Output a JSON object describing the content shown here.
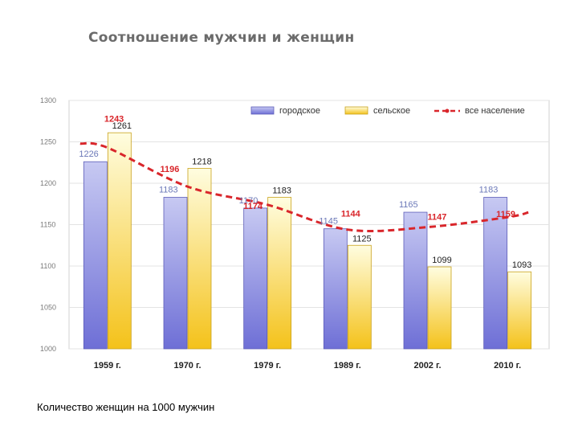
{
  "title": "Соотношение мужчин и женщин",
  "caption": "Количество женщин на 1000 мужчин",
  "colors": {
    "urban_top": "#c7c9f2",
    "urban_bottom": "#6e6fd6",
    "rural_top": "#fffde0",
    "rural_bottom": "#f4c21a",
    "total_line": "#d9262b",
    "urban_label": "#6c79b8",
    "rural_label": "#222222"
  },
  "chart_data": {
    "type": "bar",
    "title": "Соотношение мужчин и женщин",
    "xlabel": "",
    "ylabel": "",
    "ylim": [
      1000,
      1300
    ],
    "yticks": [
      1000,
      1050,
      1100,
      1150,
      1200,
      1250,
      1300
    ],
    "grid": true,
    "legend_position": "top-right",
    "categories": [
      "1959 г.",
      "1970 г.",
      "1979 г.",
      "1989 г.",
      "2002 г.",
      "2010 г."
    ],
    "series": [
      {
        "name": "городское",
        "type": "bar",
        "values": [
          1226,
          1183,
          1170,
          1145,
          1165,
          1183
        ]
      },
      {
        "name": "сельское",
        "type": "bar",
        "values": [
          1261,
          1218,
          1183,
          1125,
          1099,
          1093
        ]
      },
      {
        "name": "все население",
        "type": "line",
        "style": "dashed",
        "values": [
          1243,
          1196,
          1174,
          1144,
          1147,
          1159
        ]
      }
    ]
  }
}
